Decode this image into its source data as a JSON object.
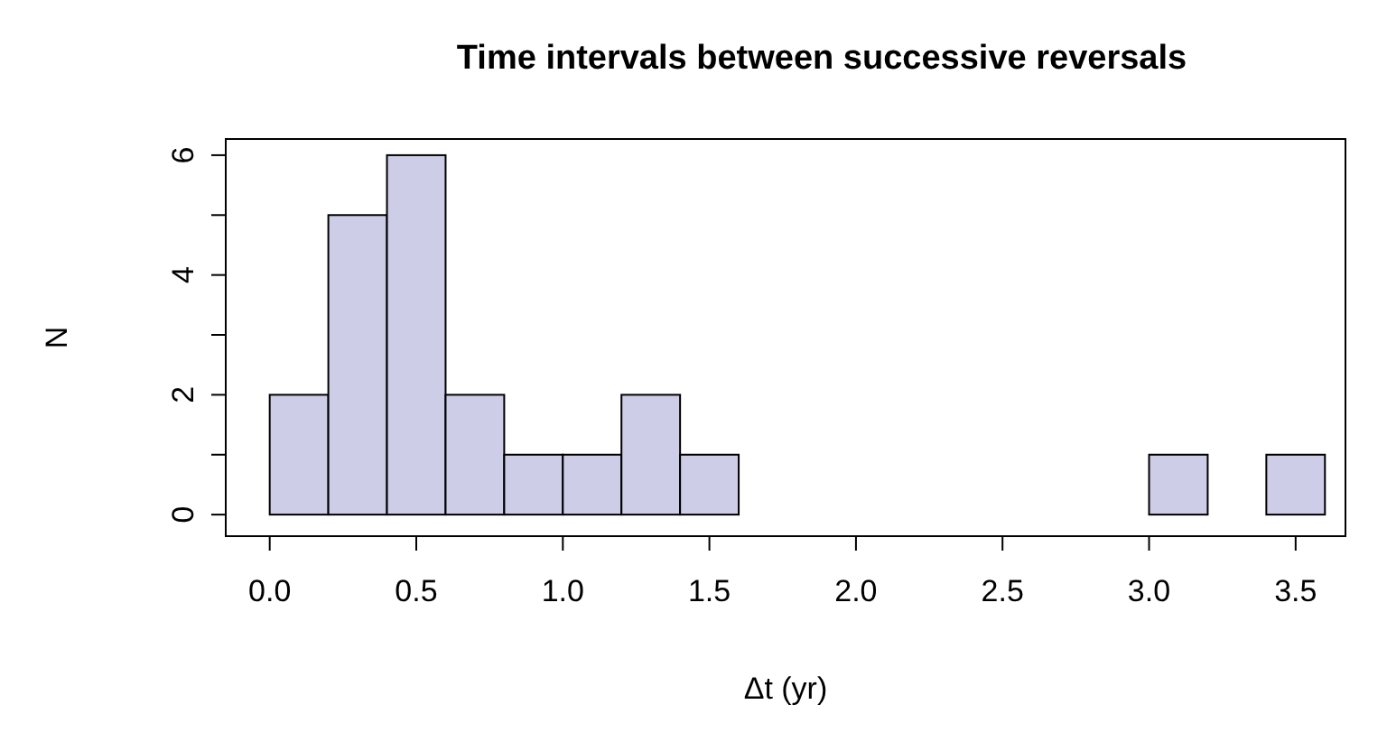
{
  "chart_data": {
    "type": "histogram",
    "title": "Time intervals between successive reversals",
    "xlabel": "Δt (yr)",
    "ylabel": "N",
    "bins": [
      0,
      0.2,
      0.4,
      0.6,
      0.8,
      1.0,
      1.2,
      1.4,
      1.6,
      1.8,
      2.0,
      2.2,
      2.4,
      2.6,
      2.8,
      3.0,
      3.2,
      3.4,
      3.6
    ],
    "values": [
      2,
      5,
      6,
      2,
      1,
      1,
      2,
      1,
      0,
      0,
      0,
      0,
      0,
      0,
      0,
      1,
      0,
      1
    ],
    "color": "#cdcde8",
    "xlim": [
      -0.15,
      3.67
    ],
    "xticks": [
      {
        "value": 0,
        "label": "0.0"
      },
      {
        "value": 0.5,
        "label": "0.5"
      },
      {
        "value": 1,
        "label": "1.0"
      },
      {
        "value": 1.5,
        "label": "1.5"
      },
      {
        "value": 2,
        "label": "2.0"
      },
      {
        "value": 2.5,
        "label": "2.5"
      },
      {
        "value": 3,
        "label": "3.0"
      },
      {
        "value": 3.5,
        "label": "3.5"
      }
    ],
    "ylim": [
      -0.36,
      6.27
    ],
    "yticks": [
      0,
      {
        "value": 1,
        "label": null
      },
      2,
      {
        "value": 3,
        "label": null
      },
      4,
      {
        "value": 5,
        "label": null
      },
      6
    ],
    "grid": false
  }
}
